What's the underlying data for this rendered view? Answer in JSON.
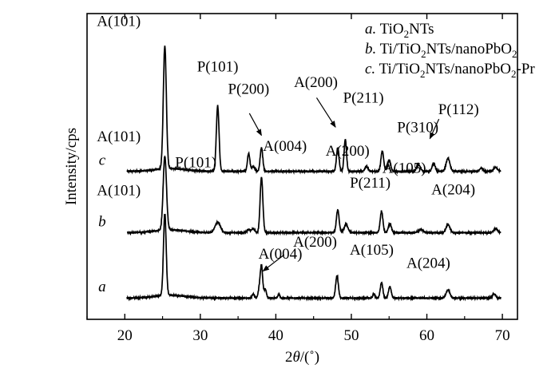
{
  "chart_data": {
    "type": "line",
    "xlabel_prefix": "2",
    "xlabel_var": "θ",
    "xlabel_unit": "/(˚)",
    "ylabel": "Intensity/cps",
    "xlim": [
      15,
      72
    ],
    "xticks": [
      "20",
      "30",
      "40",
      "50",
      "60",
      "70"
    ],
    "yticks": "none",
    "legend_position": "top-right",
    "legend": [
      {
        "letter": "a.",
        "pre": " TiO",
        "sub": "2",
        "post": "NTs"
      },
      {
        "letter": "b.",
        "pre": " Ti/TiO",
        "sub": "2",
        "post": "NTs/nanoPbO",
        "sub2": "2",
        "post2": ""
      },
      {
        "letter": "c.",
        "pre": " Ti/TiO",
        "sub": "2",
        "post": "NTs/nanoPbO",
        "sub2": "2",
        "post2": "-Pr"
      }
    ],
    "series": [
      {
        "letter": "a",
        "baseline": 0.0,
        "peaks": [
          {
            "x": 25.3,
            "h": 10.0,
            "w": 0.18
          },
          {
            "x": 37.0,
            "h": 0.5,
            "w": 0.15
          },
          {
            "x": 37.8,
            "h": 1.0,
            "w": 0.15
          },
          {
            "x": 38.1,
            "h": 3.9,
            "w": 0.16
          },
          {
            "x": 38.6,
            "h": 1.1,
            "w": 0.15
          },
          {
            "x": 40.4,
            "h": 0.5,
            "w": 0.12
          },
          {
            "x": 48.1,
            "h": 2.7,
            "w": 0.18
          },
          {
            "x": 53.0,
            "h": 0.5,
            "w": 0.15
          },
          {
            "x": 54.0,
            "h": 1.9,
            "w": 0.17
          },
          {
            "x": 55.1,
            "h": 1.4,
            "w": 0.18
          },
          {
            "x": 62.8,
            "h": 1.0,
            "w": 0.25
          },
          {
            "x": 68.9,
            "h": 0.5,
            "w": 0.22
          }
        ],
        "labels": [
          {
            "text": "A(101)",
            "x": 19.2,
            "y": 12.6
          },
          {
            "text": "A(004)",
            "x": 40.6,
            "y": 4.8
          },
          {
            "text": "A(200)",
            "x": 45.2,
            "y": 6.3
          },
          {
            "text": "A(105)",
            "x": 52.7,
            "y": 5.3
          },
          {
            "text": "A(204)",
            "x": 60.2,
            "y": 3.7
          }
        ],
        "arrows": [
          {
            "x1": 38.3,
            "y1": 3.3,
            "x2": 41.1,
            "y2": 5.3
          }
        ]
      },
      {
        "letter": "b",
        "baseline": 8.0,
        "peaks": [
          {
            "x": 25.3,
            "h": 9.0,
            "w": 0.22
          },
          {
            "x": 32.3,
            "h": 1.3,
            "w": 0.35
          },
          {
            "x": 36.4,
            "h": 0.4,
            "w": 0.2
          },
          {
            "x": 37.0,
            "h": 0.5,
            "w": 0.2
          },
          {
            "x": 38.1,
            "h": 6.8,
            "w": 0.18
          },
          {
            "x": 48.2,
            "h": 2.8,
            "w": 0.18
          },
          {
            "x": 49.3,
            "h": 1.0,
            "w": 0.25
          },
          {
            "x": 54.0,
            "h": 2.6,
            "w": 0.18
          },
          {
            "x": 55.1,
            "h": 1.1,
            "w": 0.2
          },
          {
            "x": 59.2,
            "h": 0.4,
            "w": 0.3
          },
          {
            "x": 62.8,
            "h": 1.0,
            "w": 0.25
          },
          {
            "x": 69.1,
            "h": 0.5,
            "w": 0.25
          }
        ],
        "labels": [
          {
            "text": "A(101)",
            "x": 19.2,
            "y": 19.2
          },
          {
            "text": "P(101)",
            "x": 29.4,
            "y": 16.0
          },
          {
            "text": "A(004)",
            "x": 41.2,
            "y": 18.0
          },
          {
            "text": "A(200)",
            "x": 49.5,
            "y": 17.4
          },
          {
            "text": "P(211)",
            "x": 52.5,
            "y": 13.5
          },
          {
            "text": "A(105)",
            "x": 57.0,
            "y": 15.3
          },
          {
            "text": "A(204)",
            "x": 63.5,
            "y": 12.7
          }
        ],
        "arrows": []
      },
      {
        "letter": "c",
        "baseline": 15.5,
        "peaks": [
          {
            "x": 25.3,
            "h": 15.0,
            "w": 0.2
          },
          {
            "x": 32.3,
            "h": 8.0,
            "w": 0.18
          },
          {
            "x": 36.4,
            "h": 2.2,
            "w": 0.16
          },
          {
            "x": 37.0,
            "h": 0.6,
            "w": 0.2
          },
          {
            "x": 38.1,
            "h": 2.9,
            "w": 0.17
          },
          {
            "x": 48.2,
            "h": 2.9,
            "w": 0.17
          },
          {
            "x": 49.2,
            "h": 3.9,
            "w": 0.16
          },
          {
            "x": 52.0,
            "h": 0.6,
            "w": 0.2
          },
          {
            "x": 54.1,
            "h": 2.5,
            "w": 0.18
          },
          {
            "x": 55.0,
            "h": 1.4,
            "w": 0.2
          },
          {
            "x": 58.9,
            "h": 0.8,
            "w": 0.25
          },
          {
            "x": 60.9,
            "h": 1.0,
            "w": 0.2
          },
          {
            "x": 62.8,
            "h": 1.6,
            "w": 0.25
          },
          {
            "x": 67.2,
            "h": 0.4,
            "w": 0.2
          },
          {
            "x": 69.1,
            "h": 0.5,
            "w": 0.25
          }
        ],
        "labels": [
          {
            "text": "A(101)",
            "x": 19.2,
            "y": 33.3
          },
          {
            "text": "P(101)",
            "x": 32.3,
            "y": 27.7
          },
          {
            "text": "P(200)",
            "x": 36.4,
            "y": 25.0
          },
          {
            "text": "A(200)",
            "x": 45.3,
            "y": 25.8
          },
          {
            "text": "P(211)",
            "x": 51.6,
            "y": 23.9
          },
          {
            "text": "P(310)",
            "x": 58.8,
            "y": 20.3
          },
          {
            "text": "P(112)",
            "x": 64.2,
            "y": 22.5
          }
        ],
        "arrows": [
          {
            "x1": 38.1,
            "y1": 19.9,
            "x2": 36.5,
            "y2": 22.6
          },
          {
            "x1": 47.9,
            "y1": 20.9,
            "x2": 45.4,
            "y2": 24.5
          },
          {
            "x1": 60.4,
            "y1": 19.5,
            "x2": 61.6,
            "y2": 21.9
          }
        ]
      }
    ]
  }
}
